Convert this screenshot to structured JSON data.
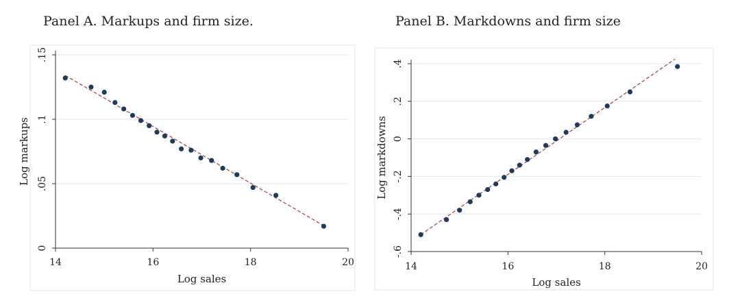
{
  "panels": {
    "a_title": "Panel A. Markups and firm size.",
    "b_title": "Panel B. Markdowns and firm size"
  },
  "colors": {
    "points": "#1f3b5c",
    "fit_line": "#b24a48",
    "grid": "#e3e7ea",
    "frame": "#e6e6e6",
    "axis": "#333333"
  },
  "chart_data": [
    {
      "type": "scatter",
      "title": "Panel A. Markups and firm size.",
      "xlabel": "Log sales",
      "ylabel": "Log markups",
      "xlim": [
        14,
        20
      ],
      "ylim": [
        0,
        0.15
      ],
      "x_ticks": [
        14,
        16,
        18,
        20
      ],
      "x_tick_labels": [
        "14",
        "16",
        "18",
        "20"
      ],
      "y_ticks": [
        0,
        0.05,
        0.1,
        0.15
      ],
      "y_tick_labels": [
        "0",
        ".05",
        ".1",
        ".15"
      ],
      "grid": true,
      "fit_line": {
        "style": "dashed",
        "x": [
          14.2,
          19.52
        ],
        "y": [
          0.134,
          0.017
        ]
      },
      "points": {
        "x": [
          14.2,
          14.73,
          15.0,
          15.22,
          15.4,
          15.58,
          15.75,
          15.92,
          16.08,
          16.24,
          16.4,
          16.58,
          16.78,
          16.98,
          17.2,
          17.43,
          17.72,
          18.05,
          18.52,
          19.5
        ],
        "y": [
          0.132,
          0.125,
          0.121,
          0.113,
          0.108,
          0.103,
          0.099,
          0.095,
          0.09,
          0.087,
          0.083,
          0.077,
          0.076,
          0.07,
          0.068,
          0.062,
          0.057,
          0.047,
          0.041,
          0.017
        ]
      }
    },
    {
      "type": "scatter",
      "title": "Panel B. Markdowns and firm size",
      "xlabel": "Log sales",
      "ylabel": "Log markdowns",
      "xlim": [
        14,
        20
      ],
      "ylim": [
        -0.6,
        0.4
      ],
      "x_ticks": [
        14,
        16,
        18,
        20
      ],
      "x_tick_labels": [
        "14",
        "16",
        "18",
        "20"
      ],
      "y_ticks": [
        -0.6,
        -0.4,
        -0.2,
        0,
        0.2,
        0.4
      ],
      "y_tick_labels": [
        "-.6",
        "-.4",
        "-.2",
        "0",
        ".2",
        ".4"
      ],
      "grid": true,
      "fit_line": {
        "style": "dashed",
        "x": [
          14.2,
          19.45
        ],
        "y": [
          -0.51,
          0.425
        ]
      },
      "points": {
        "x": [
          14.2,
          14.73,
          15.0,
          15.22,
          15.4,
          15.58,
          15.75,
          15.92,
          16.08,
          16.24,
          16.4,
          16.58,
          16.78,
          16.98,
          17.2,
          17.43,
          17.72,
          18.05,
          18.52,
          19.5
        ],
        "y": [
          -0.51,
          -0.43,
          -0.38,
          -0.335,
          -0.3,
          -0.27,
          -0.24,
          -0.205,
          -0.17,
          -0.14,
          -0.11,
          -0.07,
          -0.035,
          0.0,
          0.035,
          0.075,
          0.12,
          0.175,
          0.25,
          0.385
        ]
      }
    }
  ]
}
